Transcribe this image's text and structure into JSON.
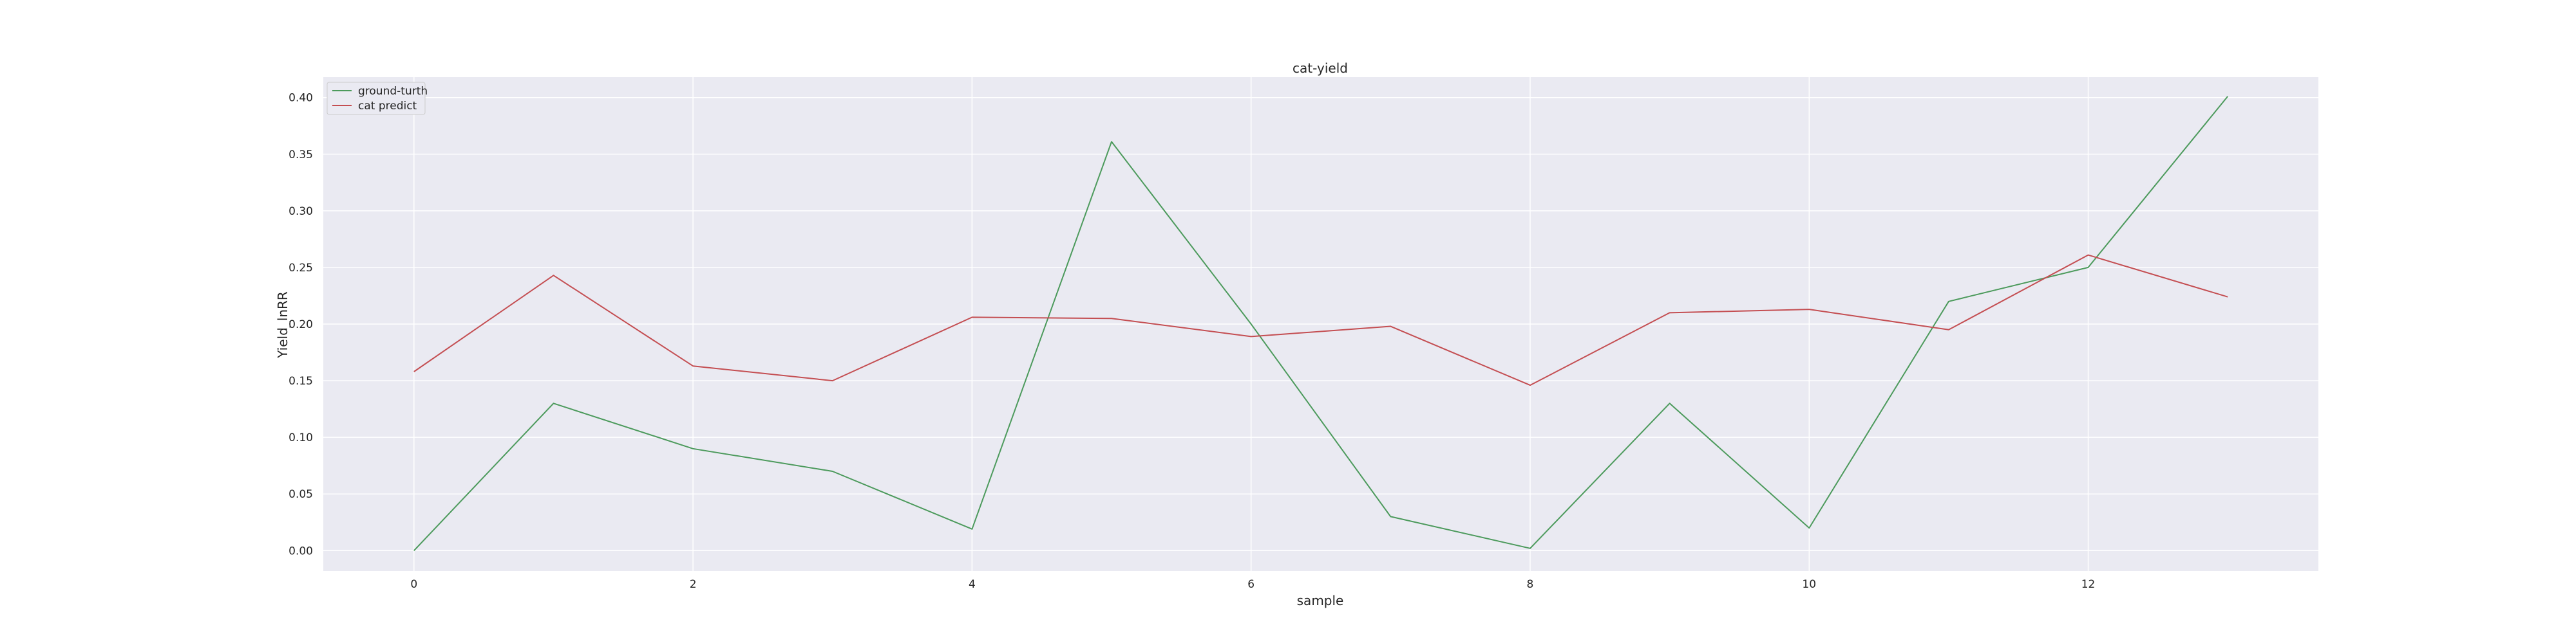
{
  "chart_data": {
    "type": "line",
    "title": "cat-yield",
    "xlabel": "sample",
    "ylabel": "Yield_lnRR",
    "x": [
      0,
      1,
      2,
      3,
      4,
      5,
      6,
      7,
      8,
      9,
      10,
      11,
      12,
      13
    ],
    "xlim": [
      -0.65,
      13.65
    ],
    "ylim": [
      -0.018,
      0.418
    ],
    "xticks": [
      0,
      2,
      4,
      6,
      8,
      10,
      12
    ],
    "yticks": [
      0.0,
      0.05,
      0.1,
      0.15,
      0.2,
      0.25,
      0.3,
      0.35,
      0.4
    ],
    "xtick_labels": [
      "0",
      "2",
      "4",
      "6",
      "8",
      "10",
      "12"
    ],
    "ytick_labels": [
      "0.00",
      "0.05",
      "0.10",
      "0.15",
      "0.20",
      "0.25",
      "0.30",
      "0.35",
      "0.40"
    ],
    "grid": true,
    "legend_position": "top-left",
    "series": [
      {
        "name": "ground-turth",
        "color": "#4c9a5c",
        "values": [
          0.0,
          0.13,
          0.09,
          0.07,
          0.019,
          0.361,
          0.2,
          0.03,
          0.002,
          0.13,
          0.02,
          0.22,
          0.25,
          0.401
        ]
      },
      {
        "name": "cat predict",
        "color": "#c44e52",
        "values": [
          0.158,
          0.243,
          0.163,
          0.15,
          0.206,
          0.205,
          0.189,
          0.198,
          0.146,
          0.21,
          0.213,
          0.195,
          0.261,
          0.224
        ]
      }
    ],
    "background_color": "#eaeaf2",
    "grid_color": "#ffffff"
  }
}
